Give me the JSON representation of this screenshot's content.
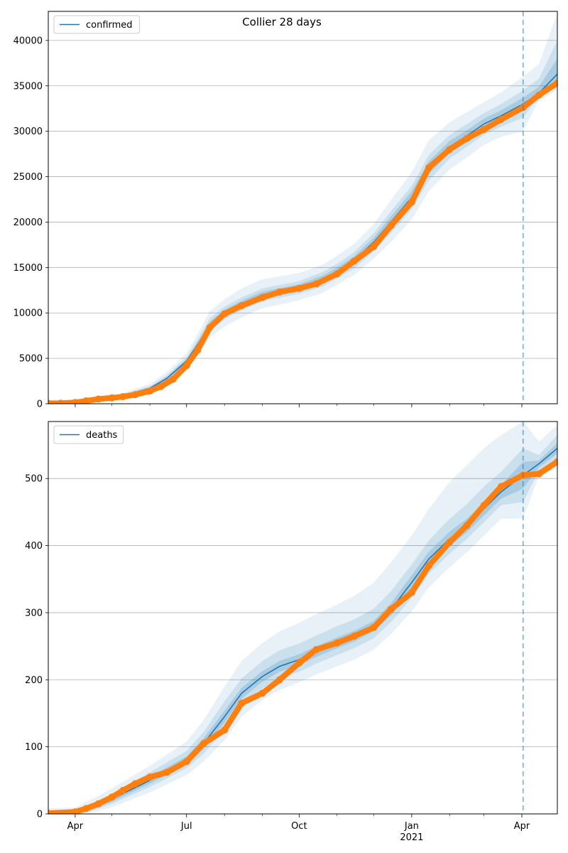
{
  "figure_title": "Collier 28 days",
  "colors": {
    "model": "#1f77b4",
    "band": "#1f77b4",
    "observed": "#ff7f0e",
    "grid": "#b0b0b0",
    "axis": "#000000"
  },
  "chart_data": [
    {
      "type": "line",
      "legend": "confirmed",
      "legend_position": "top-left",
      "grid": "horizontal",
      "x_range": [
        "2020-03-10",
        "2021-04-30"
      ],
      "ylim": [
        0,
        43200
      ],
      "y_ticks": [
        0,
        5000,
        10000,
        15000,
        20000,
        25000,
        30000,
        35000,
        40000
      ],
      "x_tick_labels": [],
      "forecast_start": "2021-04-02",
      "model": {
        "x": [
          "2020-03-10",
          "2020-04-01",
          "2020-05-01",
          "2020-06-01",
          "2020-06-15",
          "2020-07-01",
          "2020-07-10",
          "2020-07-20",
          "2020-08-01",
          "2020-08-15",
          "2020-09-01",
          "2020-10-01",
          "2020-10-20",
          "2020-11-01",
          "2020-11-15",
          "2020-12-01",
          "2020-12-15",
          "2021-01-01",
          "2021-01-15",
          "2021-02-01",
          "2021-02-15",
          "2021-03-01",
          "2021-03-15",
          "2021-04-02",
          "2021-04-15",
          "2021-04-30"
        ],
        "y": [
          50,
          150,
          550,
          1700,
          2800,
          4700,
          6500,
          8700,
          10000,
          11000,
          12000,
          12800,
          13700,
          14600,
          15800,
          17800,
          20000,
          22700,
          26000,
          28300,
          29500,
          30800,
          31700,
          33000,
          34200,
          36300
        ]
      },
      "bands": [
        {
          "level": "outer",
          "x": [
            "2020-03-10",
            "2020-04-01",
            "2020-05-01",
            "2020-06-01",
            "2020-06-15",
            "2020-07-01",
            "2020-07-10",
            "2020-07-20",
            "2020-08-01",
            "2020-08-15",
            "2020-09-01",
            "2020-10-01",
            "2020-10-20",
            "2020-11-01",
            "2020-11-15",
            "2020-12-01",
            "2020-12-15",
            "2021-01-01",
            "2021-01-15",
            "2021-02-01",
            "2021-02-15",
            "2021-03-01",
            "2021-03-15",
            "2021-04-02",
            "2021-04-15",
            "2021-04-30"
          ],
          "lower": [
            0,
            50,
            350,
            1300,
            2200,
            3900,
            5400,
            7300,
            8500,
            9500,
            10500,
            11400,
            12200,
            13100,
            14200,
            16000,
            17800,
            20300,
            23400,
            25800,
            27100,
            28500,
            29400,
            30000,
            33400,
            34500
          ],
          "upper": [
            120,
            280,
            780,
            2200,
            3500,
            5600,
            7700,
            10200,
            11500,
            12700,
            13700,
            14400,
            15300,
            16300,
            17600,
            19800,
            22400,
            25500,
            29000,
            31000,
            32100,
            33200,
            34300,
            36000,
            37400,
            43000
          ]
        },
        {
          "level": "middle",
          "x": [
            "2020-03-10",
            "2020-04-01",
            "2020-05-01",
            "2020-06-01",
            "2020-06-15",
            "2020-07-01",
            "2020-07-10",
            "2020-07-20",
            "2020-08-01",
            "2020-08-15",
            "2020-09-01",
            "2020-10-01",
            "2020-10-20",
            "2020-11-01",
            "2020-11-15",
            "2020-12-01",
            "2020-12-15",
            "2021-01-01",
            "2021-01-15",
            "2021-02-01",
            "2021-02-15",
            "2021-03-01",
            "2021-03-15",
            "2021-04-02",
            "2021-04-15",
            "2021-04-30"
          ],
          "lower": [
            20,
            90,
            430,
            1450,
            2450,
            4250,
            5900,
            8000,
            9300,
            10300,
            11300,
            12100,
            12900,
            13800,
            14900,
            16800,
            18800,
            21400,
            24600,
            27000,
            28300,
            29600,
            30500,
            31500,
            33800,
            35400
          ],
          "upper": [
            90,
            220,
            680,
            1950,
            3150,
            5150,
            7100,
            9400,
            10700,
            11700,
            12700,
            13500,
            14500,
            15400,
            16700,
            18800,
            21200,
            24000,
            27400,
            29600,
            30800,
            32000,
            33000,
            34500,
            35800,
            40000
          ]
        },
        {
          "level": "inner",
          "x": [
            "2020-03-10",
            "2020-04-01",
            "2020-05-01",
            "2020-06-01",
            "2020-06-15",
            "2020-07-01",
            "2020-07-10",
            "2020-07-20",
            "2020-08-01",
            "2020-08-15",
            "2020-09-01",
            "2020-10-01",
            "2020-10-20",
            "2020-11-01",
            "2020-11-15",
            "2020-12-01",
            "2020-12-15",
            "2021-01-01",
            "2021-01-15",
            "2021-02-01",
            "2021-02-15",
            "2021-03-01",
            "2021-03-15",
            "2021-04-02",
            "2021-04-15",
            "2021-04-30"
          ],
          "lower": [
            35,
            120,
            490,
            1570,
            2620,
            4470,
            6200,
            8350,
            9650,
            10650,
            11650,
            12450,
            13300,
            14200,
            15350,
            17300,
            19400,
            22000,
            25300,
            27650,
            28900,
            30200,
            31100,
            32300,
            33900,
            35800
          ],
          "upper": [
            70,
            180,
            610,
            1830,
            2980,
            4930,
            6800,
            9050,
            10350,
            11350,
            12350,
            13150,
            14100,
            15000,
            16250,
            18300,
            20600,
            23400,
            26700,
            28950,
            30100,
            31400,
            32300,
            33700,
            34900,
            38000
          ]
        }
      ],
      "observed": {
        "x": [
          "2020-03-10",
          "2020-03-20",
          "2020-04-01",
          "2020-04-10",
          "2020-04-20",
          "2020-05-01",
          "2020-05-10",
          "2020-05-20",
          "2020-06-01",
          "2020-06-10",
          "2020-06-20",
          "2020-07-01",
          "2020-07-10",
          "2020-07-20",
          "2020-08-01",
          "2020-08-15",
          "2020-09-01",
          "2020-09-15",
          "2020-10-01",
          "2020-10-15",
          "2020-11-01",
          "2020-11-15",
          "2020-12-01",
          "2020-12-15",
          "2021-01-01",
          "2021-01-15",
          "2021-02-01",
          "2021-02-15",
          "2021-03-01",
          "2021-03-15",
          "2021-04-02",
          "2021-04-15",
          "2021-04-30"
        ],
        "y": [
          50,
          60,
          130,
          320,
          520,
          650,
          780,
          1000,
          1400,
          1900,
          2700,
          4200,
          5900,
          8400,
          9900,
          10800,
          11700,
          12300,
          12700,
          13200,
          14300,
          15700,
          17300,
          19600,
          22200,
          26000,
          28000,
          29200,
          30200,
          31300,
          32600,
          34000,
          35300
        ]
      }
    },
    {
      "type": "line",
      "legend": "deaths",
      "legend_position": "top-left",
      "grid": "horizontal",
      "x_range": [
        "2020-03-10",
        "2021-04-30"
      ],
      "ylim": [
        0,
        585
      ],
      "y_ticks": [
        0,
        100,
        200,
        300,
        400,
        500
      ],
      "x_tick_labels": [
        "Apr",
        "Jul",
        "Oct",
        "Jan",
        "Apr"
      ],
      "x_ticks": [
        "2020-04-01",
        "2020-07-01",
        "2020-10-01",
        "2021-01-01",
        "2021-04-01"
      ],
      "x_year_label": "2021",
      "forecast_start": "2021-04-02",
      "model": {
        "x": [
          "2020-03-10",
          "2020-04-01",
          "2020-04-15",
          "2020-05-01",
          "2020-06-01",
          "2020-07-01",
          "2020-07-15",
          "2020-08-01",
          "2020-08-15",
          "2020-09-01",
          "2020-09-15",
          "2020-10-01",
          "2020-10-15",
          "2020-11-01",
          "2020-11-15",
          "2020-12-01",
          "2020-12-15",
          "2021-01-01",
          "2021-01-15",
          "2021-02-01",
          "2021-02-15",
          "2021-03-01",
          "2021-03-15",
          "2021-04-02",
          "2021-04-15",
          "2021-04-30"
        ],
        "y": [
          1,
          3,
          10,
          22,
          50,
          80,
          105,
          145,
          180,
          205,
          220,
          230,
          242,
          255,
          265,
          280,
          305,
          345,
          380,
          410,
          430,
          455,
          480,
          505,
          522,
          545
        ]
      },
      "bands": [
        {
          "level": "outer",
          "x": [
            "2020-03-10",
            "2020-04-01",
            "2020-04-15",
            "2020-05-01",
            "2020-06-01",
            "2020-07-01",
            "2020-07-15",
            "2020-08-01",
            "2020-08-15",
            "2020-09-01",
            "2020-09-15",
            "2020-10-01",
            "2020-10-15",
            "2020-11-01",
            "2020-11-15",
            "2020-12-01",
            "2020-12-15",
            "2021-01-01",
            "2021-01-15",
            "2021-02-01",
            "2021-02-15",
            "2021-03-01",
            "2021-03-15",
            "2021-04-02",
            "2021-04-15",
            "2021-04-30"
          ],
          "lower": [
            0,
            0,
            2,
            10,
            32,
            58,
            78,
            110,
            145,
            170,
            185,
            196,
            208,
            220,
            230,
            245,
            268,
            302,
            338,
            368,
            390,
            415,
            440,
            440,
            505,
            515
          ],
          "upper": [
            8,
            10,
            22,
            38,
            72,
            108,
            140,
            190,
            228,
            255,
            272,
            285,
            298,
            312,
            325,
            345,
            375,
            415,
            455,
            495,
            520,
            545,
            565,
            585,
            555,
            580
          ]
        },
        {
          "level": "middle",
          "x": [
            "2020-03-10",
            "2020-04-01",
            "2020-04-15",
            "2020-05-01",
            "2020-06-01",
            "2020-07-01",
            "2020-07-15",
            "2020-08-01",
            "2020-08-15",
            "2020-09-01",
            "2020-09-15",
            "2020-10-01",
            "2020-10-15",
            "2020-11-01",
            "2020-11-15",
            "2020-12-01",
            "2020-12-15",
            "2021-01-01",
            "2021-01-15",
            "2021-02-01",
            "2021-02-15",
            "2021-03-01",
            "2021-03-15",
            "2021-04-02",
            "2021-04-15",
            "2021-04-30"
          ],
          "lower": [
            0,
            1,
            5,
            15,
            40,
            68,
            90,
            126,
            162,
            187,
            202,
            212,
            224,
            237,
            247,
            262,
            286,
            322,
            358,
            388,
            410,
            435,
            460,
            465,
            512,
            530
          ],
          "upper": [
            4,
            6,
            16,
            30,
            62,
            94,
            122,
            168,
            202,
            228,
            244,
            254,
            266,
            280,
            290,
            306,
            332,
            372,
            408,
            440,
            462,
            488,
            510,
            545,
            535,
            565
          ]
        },
        {
          "level": "inner",
          "x": [
            "2020-03-10",
            "2020-04-01",
            "2020-04-15",
            "2020-05-01",
            "2020-06-01",
            "2020-07-01",
            "2020-07-15",
            "2020-08-01",
            "2020-08-15",
            "2020-09-01",
            "2020-09-15",
            "2020-10-01",
            "2020-10-15",
            "2020-11-01",
            "2020-11-15",
            "2020-12-01",
            "2020-12-15",
            "2021-01-01",
            "2021-01-15",
            "2021-02-01",
            "2021-02-15",
            "2021-03-01",
            "2021-03-15",
            "2021-04-02",
            "2021-04-15",
            "2021-04-30"
          ],
          "lower": [
            0,
            2,
            7,
            18,
            45,
            74,
            97,
            136,
            172,
            197,
            212,
            222,
            234,
            247,
            257,
            272,
            296,
            334,
            369,
            399,
            420,
            445,
            470,
            485,
            517,
            537
          ],
          "upper": [
            2,
            4,
            13,
            26,
            55,
            86,
            113,
            154,
            188,
            213,
            228,
            238,
            250,
            263,
            273,
            288,
            314,
            356,
            391,
            421,
            440,
            465,
            490,
            525,
            527,
            553
          ]
        }
      ],
      "observed": {
        "x": [
          "2020-03-10",
          "2020-04-01",
          "2020-04-10",
          "2020-04-20",
          "2020-05-01",
          "2020-05-10",
          "2020-05-20",
          "2020-06-01",
          "2020-06-15",
          "2020-07-01",
          "2020-07-15",
          "2020-08-01",
          "2020-08-15",
          "2020-09-01",
          "2020-09-15",
          "2020-10-01",
          "2020-10-15",
          "2020-11-01",
          "2020-11-15",
          "2020-12-01",
          "2020-12-15",
          "2021-01-01",
          "2021-01-15",
          "2021-02-01",
          "2021-02-15",
          "2021-03-01",
          "2021-03-15",
          "2021-04-02",
          "2021-04-15",
          "2021-04-30"
        ],
        "y": [
          1,
          3,
          8,
          15,
          25,
          35,
          45,
          55,
          62,
          78,
          105,
          125,
          165,
          180,
          200,
          225,
          245,
          255,
          265,
          278,
          305,
          330,
          370,
          405,
          430,
          460,
          488,
          505,
          507,
          525
        ]
      }
    }
  ]
}
